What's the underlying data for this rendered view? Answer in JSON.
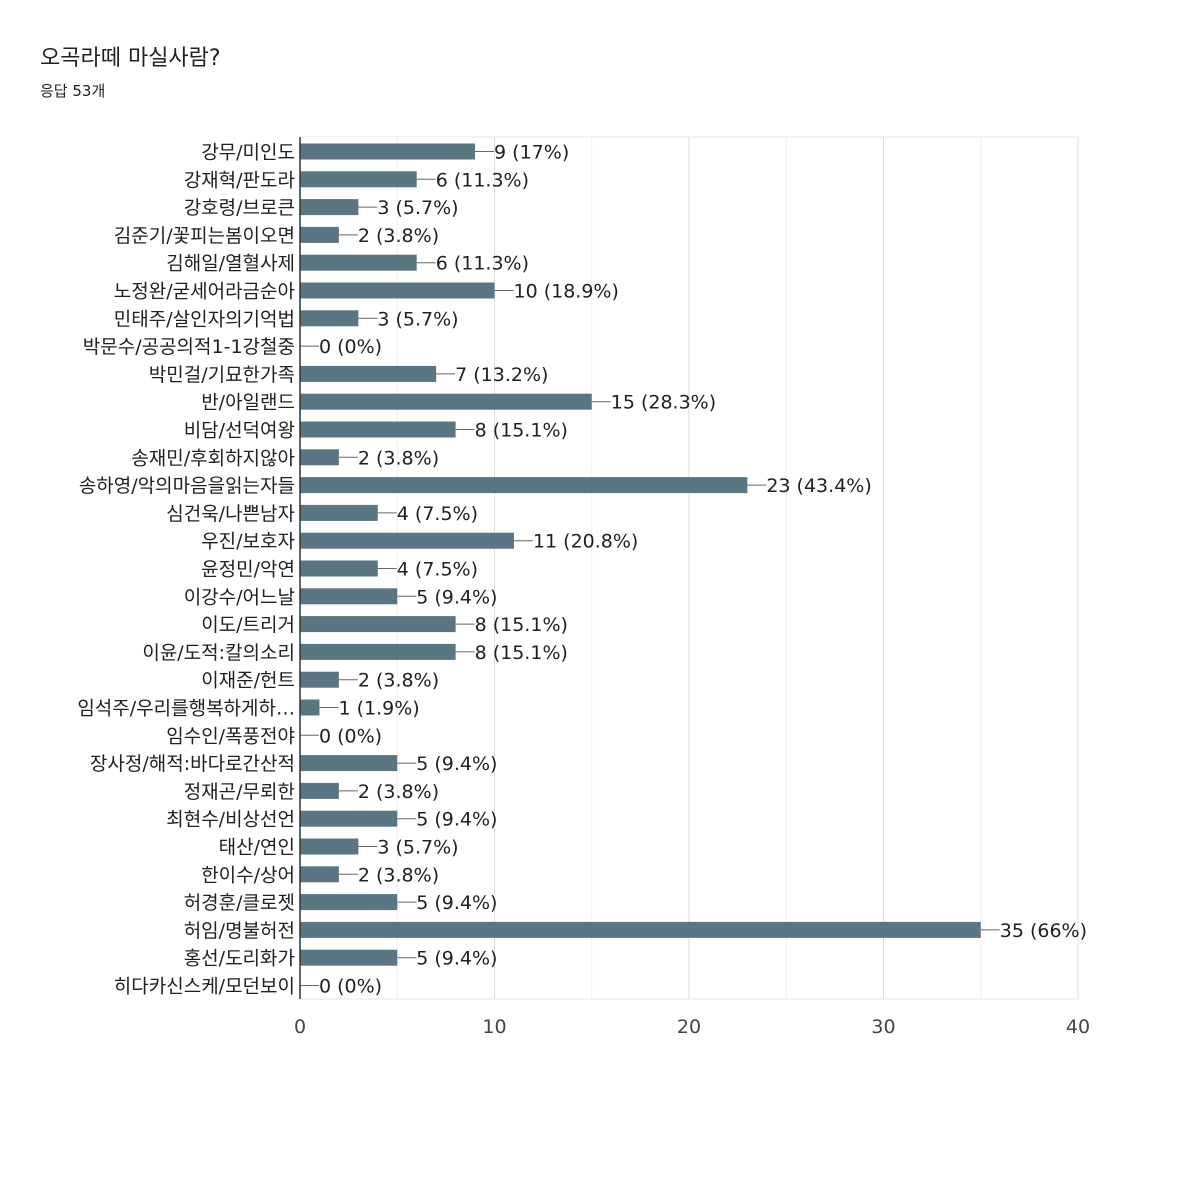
{
  "title": "오곡라떼 마실사람?",
  "subtitle": "응답 53개",
  "chart_data": {
    "type": "bar",
    "orientation": "horizontal",
    "title": "",
    "xlabel": "",
    "ylabel": "",
    "xlim": [
      0,
      40
    ],
    "x_ticks": [
      "0",
      "10",
      "20",
      "30",
      "40"
    ],
    "grid": true,
    "color": "#5a7682",
    "categories": [
      "강무/미인도",
      "강재혁/판도라",
      "강호령/브로큰",
      "김준기/꽃피는봄이오면",
      "김해일/열혈사제",
      "노정완/굳세어라금순아",
      "민태주/살인자의기억법",
      "박문수/공공의적1-1강철중",
      "박민걸/기묘한가족",
      "반/아일랜드",
      "비담/선덕여왕",
      "송재민/후회하지않아",
      "송하영/악의마음을읽는자들",
      "심건욱/나쁜남자",
      "우진/보호자",
      "윤정민/악연",
      "이강수/어느날",
      "이도/트리거",
      "이윤/도적:칼의소리",
      "이재준/헌트",
      "임석주/우리를행복하게하…",
      "임수인/폭풍전야",
      "장사정/해적:바다로간산적",
      "정재곤/무뢰한",
      "최현수/비상선언",
      "태산/연인",
      "한이수/상어",
      "허경훈/클로젯",
      "허임/명불허전",
      "홍선/도리화가",
      "히다카신스케/모던보이"
    ],
    "values": [
      9,
      6,
      3,
      2,
      6,
      10,
      3,
      0,
      7,
      15,
      8,
      2,
      23,
      4,
      11,
      4,
      5,
      8,
      8,
      2,
      1,
      0,
      5,
      2,
      5,
      3,
      2,
      5,
      35,
      5,
      0
    ],
    "data_labels": [
      "9 (17%)",
      "6 (11.3%)",
      "3 (5.7%)",
      "2 (3.8%)",
      "6 (11.3%)",
      "10 (18.9%)",
      "3 (5.7%)",
      "0 (0%)",
      "7 (13.2%)",
      "15 (28.3%)",
      "8 (15.1%)",
      "2 (3.8%)",
      "23 (43.4%)",
      "4 (7.5%)",
      "11 (20.8%)",
      "4 (7.5%)",
      "5 (9.4%)",
      "8 (15.1%)",
      "8 (15.1%)",
      "2 (3.8%)",
      "1 (1.9%)",
      "0 (0%)",
      "5 (9.4%)",
      "2 (3.8%)",
      "5 (9.4%)",
      "3 (5.7%)",
      "2 (3.8%)",
      "5 (9.4%)",
      "35 (66%)",
      "5 (9.4%)",
      "0 (0%)"
    ]
  }
}
